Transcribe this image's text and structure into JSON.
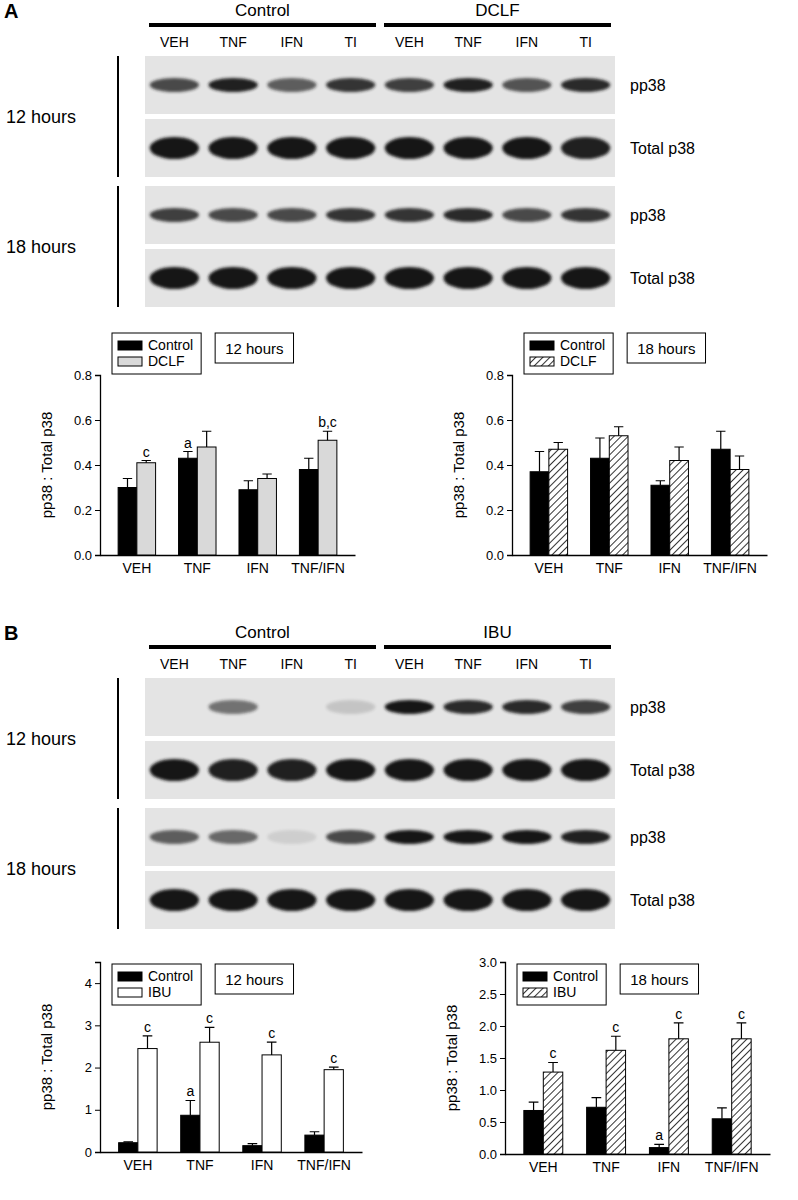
{
  "panels": [
    {
      "label": "A",
      "groups": [
        "Control",
        "DCLF"
      ],
      "lanes": [
        "VEH",
        "TNF",
        "IFN",
        "TI",
        "VEH",
        "TNF",
        "IFN",
        "TI"
      ],
      "times": [
        "12 hours",
        "18 hours"
      ],
      "rows": [
        "pp38",
        "Total p38"
      ]
    },
    {
      "label": "B",
      "groups": [
        "Control",
        "IBU"
      ],
      "lanes": [
        "VEH",
        "TNF",
        "IFN",
        "TI",
        "VEH",
        "TNF",
        "IFN",
        "TI"
      ],
      "times": [
        "12 hours",
        "18 hours"
      ],
      "rows": [
        "pp38",
        "Total p38"
      ]
    }
  ],
  "chart_data": [
    {
      "type": "bar",
      "title": "12 hours",
      "y_label": "pp38 : Total p38",
      "categories": [
        "VEH",
        "TNF",
        "IFN",
        "TNF/IFN"
      ],
      "series": [
        {
          "name": "Control",
          "color": "#000000",
          "values": [
            0.3,
            0.43,
            0.29,
            0.38
          ],
          "errors": [
            0.04,
            0.03,
            0.04,
            0.05
          ],
          "annotations": [
            null,
            "a",
            null,
            null
          ]
        },
        {
          "name": "DCLF",
          "color": "#d9d9d9",
          "values": [
            0.41,
            0.48,
            0.34,
            0.51
          ],
          "errors": [
            0.01,
            0.07,
            0.02,
            0.04
          ],
          "annotations": [
            "c",
            null,
            null,
            "b,c"
          ]
        }
      ],
      "ylim": [
        0,
        0.8
      ],
      "yticks": [
        {
          "value": 0,
          "label": "0.0"
        },
        0.2,
        0.4,
        0.6,
        0.8
      ],
      "legend": "upper left"
    },
    {
      "type": "bar",
      "title": "18 hours",
      "y_label": "pp38 : Total p38",
      "categories": [
        "VEH",
        "TNF",
        "IFN",
        "TNF/IFN"
      ],
      "series": [
        {
          "name": "Control",
          "color": "#000000",
          "values": [
            0.37,
            0.43,
            0.31,
            0.47
          ],
          "errors": [
            0.09,
            0.09,
            0.02,
            0.08
          ]
        },
        {
          "name": "DCLF",
          "color": "#ffffff",
          "values": [
            0.47,
            0.53,
            0.42,
            0.38
          ],
          "errors": [
            0.03,
            0.04,
            0.06,
            0.06
          ]
        }
      ],
      "ylim": [
        0,
        0.8
      ],
      "yticks": [
        {
          "value": 0,
          "label": "0.0"
        },
        0.2,
        0.4,
        0.6,
        0.8
      ],
      "legend": "upper left"
    },
    {
      "type": "bar",
      "title": "12 hours",
      "y_label": "pp38 : Total p38",
      "categories": [
        "VEH",
        "TNF",
        "IFN",
        "TNF/IFN"
      ],
      "series": [
        {
          "name": "Control",
          "color": "#000000",
          "values": [
            0.22,
            0.87,
            0.15,
            0.4
          ],
          "errors": [
            0.02,
            0.35,
            0.05,
            0.08
          ],
          "annotations": [
            null,
            "a",
            null,
            null
          ]
        },
        {
          "name": "IBU",
          "color": "#ffffff",
          "values": [
            2.45,
            2.6,
            2.3,
            1.95
          ],
          "errors": [
            0.3,
            0.35,
            0.3,
            0.06
          ],
          "annotations": [
            "c",
            "c",
            "c",
            "c"
          ]
        }
      ],
      "ylim": [
        0,
        4.5
      ],
      "yticks": [
        0,
        1,
        2,
        3,
        4
      ],
      "legend": "upper left"
    },
    {
      "type": "bar",
      "title": "18 hours",
      "y_label": "pp38 : Total p38",
      "categories": [
        "VEH",
        "TNF",
        "IFN",
        "TNF/IFN"
      ],
      "series": [
        {
          "name": "Control",
          "color": "#000000",
          "values": [
            0.68,
            0.73,
            0.1,
            0.55
          ],
          "errors": [
            0.13,
            0.15,
            0.05,
            0.17
          ],
          "annotations": [
            null,
            null,
            "a",
            null
          ]
        },
        {
          "name": "IBU",
          "color": "#ffffff",
          "values": [
            1.28,
            1.62,
            1.8,
            1.8
          ],
          "errors": [
            0.15,
            0.22,
            0.25,
            0.25
          ],
          "annotations": [
            "c",
            "c",
            "c",
            "c"
          ]
        }
      ],
      "ylim": [
        0,
        3
      ],
      "yticks": [
        {
          "value": 0,
          "label": "0.0"
        },
        0.5,
        {
          "value": 1,
          "label": "1.0"
        },
        1.5,
        {
          "value": 2,
          "label": "2.0"
        },
        2.5,
        {
          "value": 3,
          "label": "3.0"
        }
      ],
      "legend": "upper left"
    }
  ]
}
